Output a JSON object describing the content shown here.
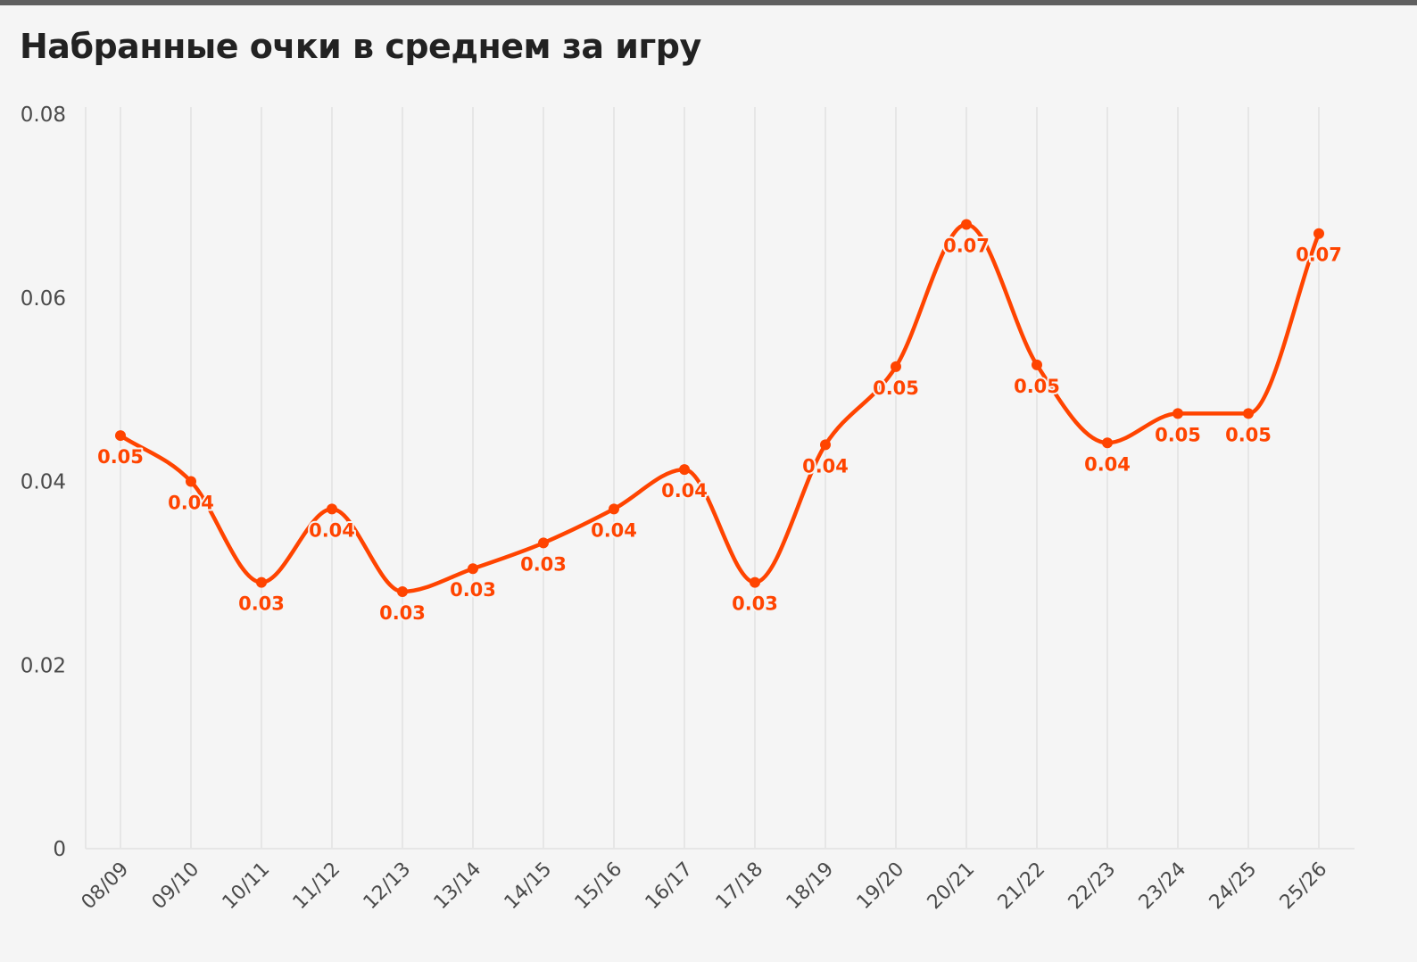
{
  "colors": {
    "series": "#ff4400",
    "grid": "#e6e6e6",
    "background": "#f5f5f5",
    "title": "#222222",
    "top_bar": "#5f5f5f"
  },
  "chart_data": {
    "type": "line",
    "title": "Набранные очки в среднем за игру",
    "xlabel": "",
    "ylabel": "",
    "ylim": [
      0,
      0.08
    ],
    "y_ticks": [
      0,
      0.02,
      0.04,
      0.06,
      0.08
    ],
    "y_tick_labels": [
      "0",
      "0.02",
      "0.04",
      "0.06",
      "0.08"
    ],
    "grid": true,
    "smooth": true,
    "categories": [
      "08/09",
      "09/10",
      "10/11",
      "11/12",
      "12/13",
      "13/14",
      "14/15",
      "15/16",
      "16/17",
      "17/18",
      "18/19",
      "19/20",
      "20/21",
      "21/22",
      "22/23",
      "23/24",
      "24/25",
      "25/26"
    ],
    "series": [
      {
        "values": [
          0.045,
          0.04,
          0.029,
          0.037,
          0.028,
          0.0305,
          0.0333,
          0.037,
          0.0413,
          0.029,
          0.044,
          0.0525,
          0.068,
          0.0527,
          0.0442,
          0.0474,
          0.0474,
          0.067
        ],
        "labels": [
          "0.05",
          "0.04",
          "0.03",
          "0.04",
          "0.03",
          "0.03",
          "0.03",
          "0.04",
          "0.04",
          "0.03",
          "0.04",
          "0.05",
          "0.07",
          "0.05",
          "0.04",
          "0.05",
          "0.05",
          "0.07"
        ]
      }
    ]
  }
}
